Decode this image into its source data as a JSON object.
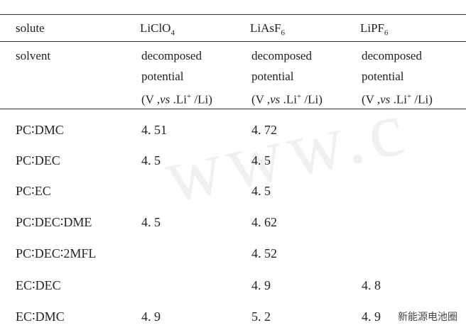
{
  "table": {
    "header": {
      "solute_label": "solute",
      "solutes": [
        {
          "text": "LiClO",
          "sub": "4"
        },
        {
          "text": "LiAsF",
          "sub": "6"
        },
        {
          "text": "LiPF",
          "sub": "6"
        }
      ]
    },
    "subheader": {
      "solvent_label": "solvent",
      "line1": "decomposed",
      "line2": "potential",
      "unit": {
        "open": "(V ,",
        "italic": "vs",
        "mid": " .Li",
        "sup": "+",
        "close": " /Li)"
      }
    },
    "rows": [
      [
        "PC∶DMC",
        "4. 51",
        "4. 72",
        null
      ],
      [
        "PC∶DEC",
        "4. 5",
        "4. 5",
        null
      ],
      [
        "PC∶EC",
        null,
        "4. 5",
        null
      ],
      [
        "PC∶DEC∶DME",
        "4. 5",
        "4. 62",
        null
      ],
      [
        "PC∶DEC∶2MFL",
        null,
        "4. 52",
        null
      ],
      [
        "EC∶DEC",
        null,
        "4. 9",
        "4. 8"
      ],
      [
        "EC∶DMC",
        "4. 9",
        "5. 2",
        "4. 9"
      ]
    ]
  },
  "watermark": {
    "background": "www.c",
    "logo": "新能源电池圈"
  }
}
